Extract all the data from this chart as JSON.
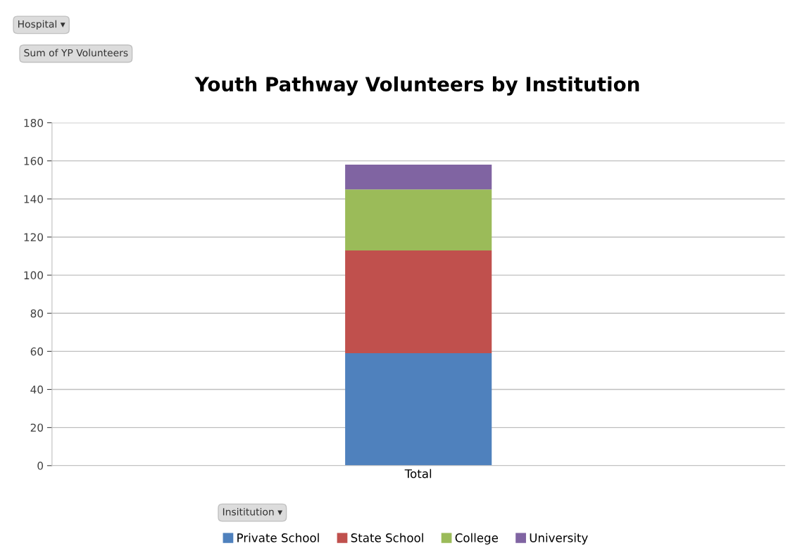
{
  "chart_data": {
    "type": "bar",
    "title": "Youth Pathway Volunteers by Institution",
    "categories": [
      "Total"
    ],
    "stacked": true,
    "series": [
      {
        "name": "Private School",
        "color": "#4f81bd",
        "values": [
          59
        ]
      },
      {
        "name": "State School",
        "color": "#c0504d",
        "values": [
          54
        ]
      },
      {
        "name": "College",
        "color": "#9bbb59",
        "values": [
          32
        ]
      },
      {
        "name": "University",
        "color": "#8064a2",
        "values": [
          13
        ]
      }
    ],
    "ylim": [
      0,
      180
    ],
    "yticks": [
      0,
      20,
      40,
      60,
      80,
      100,
      120,
      140,
      160,
      180
    ],
    "grid": "y",
    "legend": "bottom",
    "annotations": [
      "Hospital ▾",
      "Sum of YP Volunteers",
      "Insititution ▾"
    ]
  }
}
